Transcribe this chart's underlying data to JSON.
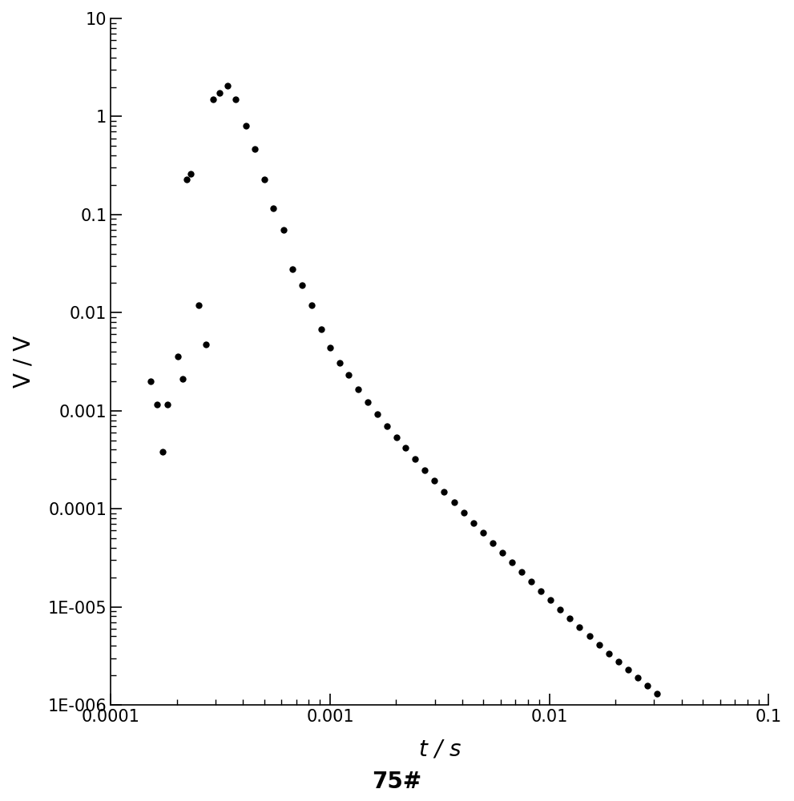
{
  "title": "75#",
  "xlabel": "t / s",
  "ylabel": "V / V",
  "xlim": [
    0.0001,
    0.1
  ],
  "ylim": [
    1e-06,
    10
  ],
  "marker_color": "#000000",
  "marker_size": 6,
  "background_color": "#ffffff",
  "scatter_x": [
    0.000152,
    0.000162,
    0.000172,
    0.000182,
    0.000202,
    0.000212,
    0.000222,
    0.000232,
    0.000252,
    0.000272,
    0.000292,
    0.000312,
    0.000342,
    0.000372,
    0.000412,
    0.000452,
    0.000502,
    0.000552,
    0.000612,
    0.000672,
    0.000742,
    0.000822,
    0.000912,
    0.001002,
    0.001102,
    0.001212,
    0.001342,
    0.001482,
    0.001642,
    0.001812,
    0.002002,
    0.002212,
    0.002442,
    0.002702,
    0.002992,
    0.003312,
    0.003672,
    0.004062,
    0.004502,
    0.004982,
    0.005512,
    0.006092,
    0.006742,
    0.007462,
    0.008262,
    0.009142,
    0.010122,
    0.011202,
    0.012402,
    0.013732,
    0.015202,
    0.016832,
    0.018632,
    0.020632,
    0.022852,
    0.025312,
    0.028032,
    0.031032
  ],
  "scatter_y": [
    0.002,
    0.00115,
    0.00038,
    0.00115,
    0.0036,
    0.0021,
    0.23,
    0.26,
    0.012,
    0.0047,
    1.5,
    1.75,
    2.05,
    1.5,
    0.8,
    0.47,
    0.23,
    0.115,
    0.07,
    0.028,
    0.019,
    0.012,
    0.0068,
    0.0044,
    0.0031,
    0.0023,
    0.00165,
    0.00122,
    0.00092,
    0.0007,
    0.000535,
    0.000415,
    0.00032,
    0.000248,
    0.000192,
    0.00015,
    0.000117,
    9.15e-05,
    7.18e-05,
    5.66e-05,
    4.47e-05,
    3.55e-05,
    2.83e-05,
    2.26e-05,
    1.81e-05,
    1.45e-05,
    1.17e-05,
    9.43e-06,
    7.62e-06,
    6.18e-06,
    5.02e-06,
    4.1e-06,
    3.36e-06,
    2.76e-06,
    2.28e-06,
    1.88e-06,
    1.56e-06,
    1.3e-06
  ],
  "ytick_labels": [
    "10",
    "1",
    "0.1",
    "0.01",
    "0.001",
    "0.0001",
    "1E-005",
    "1E-006"
  ],
  "ytick_values": [
    10,
    1,
    0.1,
    0.01,
    0.001,
    0.0001,
    1e-05,
    1e-06
  ],
  "xtick_labels": [
    "0.0001",
    "0.001",
    "0.01",
    "0.1"
  ],
  "xtick_values": [
    0.0001,
    0.001,
    0.01,
    0.1
  ],
  "title_fontsize": 20,
  "label_fontsize": 20,
  "tick_fontsize": 15
}
